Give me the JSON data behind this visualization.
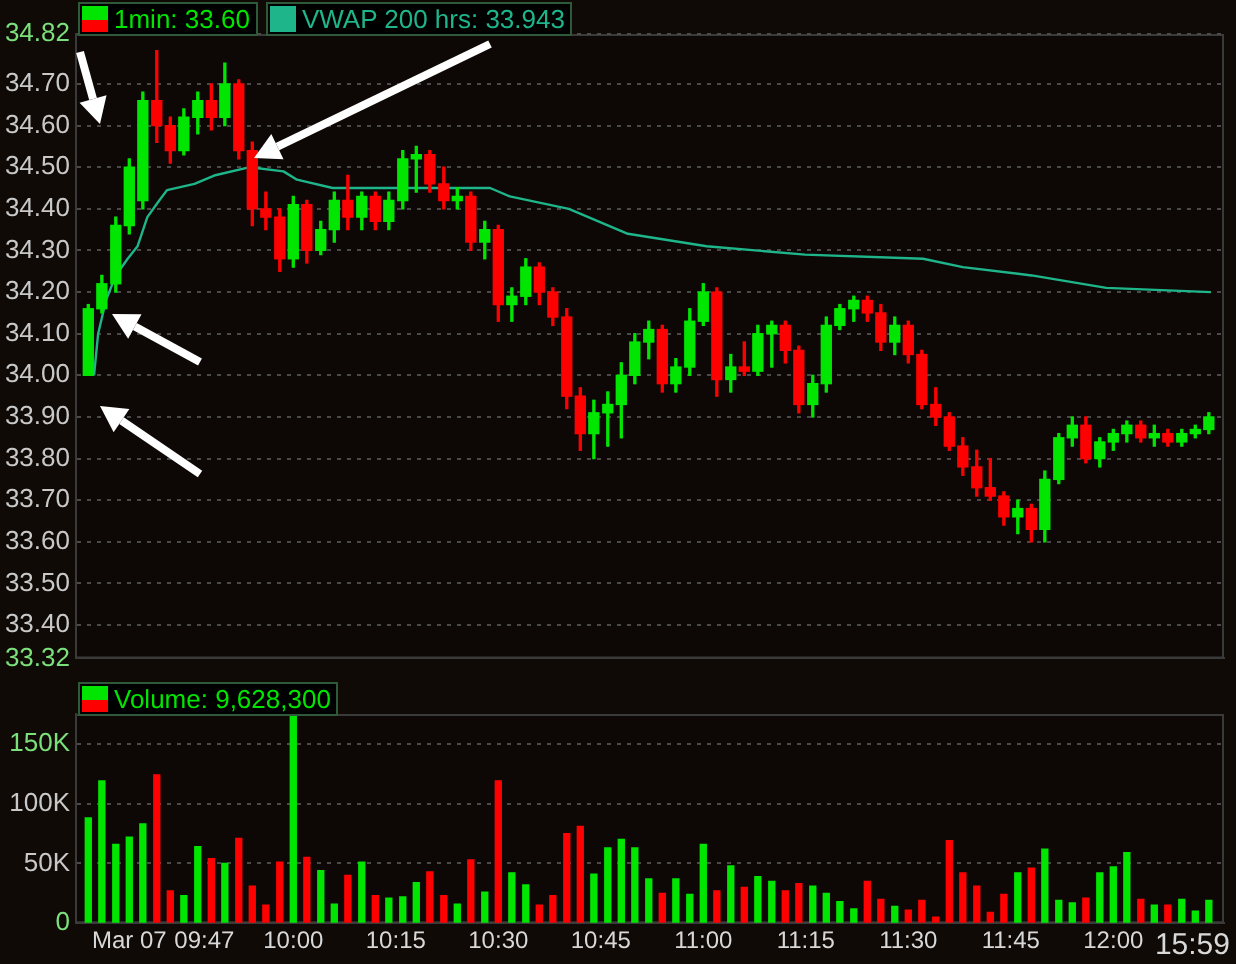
{
  "chart_data": [
    {
      "type": "candlestick",
      "xlim": [
        9.47,
        12.27
      ],
      "ylim": [
        33.32,
        34.82
      ],
      "yticks": [
        33.32,
        {
          "value": 33.4,
          "label": "33.40"
        },
        {
          "value": 33.5,
          "label": "33.50"
        },
        {
          "value": 33.6,
          "label": "33.60"
        },
        {
          "value": 33.7,
          "label": "33.70"
        },
        {
          "value": 33.8,
          "label": "33.80"
        },
        {
          "value": 33.9,
          "label": "33.90"
        },
        {
          "value": 34.0,
          "label": "34.00"
        },
        {
          "value": 34.1,
          "label": "34.10"
        },
        {
          "value": 34.2,
          "label": "34.20"
        },
        {
          "value": 34.3,
          "label": "34.30"
        },
        {
          "value": 34.4,
          "label": "34.40"
        },
        {
          "value": 34.5,
          "label": "34.50"
        },
        {
          "value": 34.6,
          "label": "34.60"
        },
        {
          "value": 34.7,
          "label": "34.70"
        },
        34.82
      ],
      "grid": "y",
      "legend": "top left",
      "tick_labels": "y",
      "series": [
        {
          "name": "1min: 33.60",
          "x": [
            9.5,
            9.533,
            9.567,
            9.6,
            9.633,
            9.667,
            9.7,
            9.733,
            9.767,
            9.8,
            9.833,
            9.867,
            9.9,
            9.933,
            9.967,
            10,
            10.033,
            10.067,
            10.1,
            10.133,
            10.167,
            10.2,
            10.233,
            10.267,
            10.3,
            10.333,
            10.367,
            10.4,
            10.433,
            10.467,
            10.5,
            10.533,
            10.567,
            10.6,
            10.633,
            10.667,
            10.7,
            10.733,
            10.767,
            10.8,
            10.833,
            10.867,
            10.9,
            10.933,
            10.967,
            11,
            11.033,
            11.067,
            11.1,
            11.133,
            11.167,
            11.2,
            11.233,
            11.267,
            11.3,
            11.333,
            11.367,
            11.4,
            11.433,
            11.467,
            11.5,
            11.533,
            11.567,
            11.6,
            11.633,
            11.667,
            11.7,
            11.733,
            11.767,
            11.8,
            11.833,
            11.867,
            11.9,
            11.933,
            11.967,
            12,
            12.033,
            12.067,
            12.1,
            12.133,
            12.167,
            12.2,
            12.233
          ],
          "ohlc": [
            [
              34.0,
              34.17,
              34.0,
              34.16
            ],
            [
              34.16,
              34.24,
              34.15,
              34.22
            ],
            [
              34.22,
              34.38,
              34.2,
              34.36
            ],
            [
              34.36,
              34.52,
              34.34,
              34.5
            ],
            [
              34.42,
              34.68,
              34.4,
              34.66
            ],
            [
              34.66,
              34.78,
              34.56,
              34.6
            ],
            [
              34.6,
              34.62,
              34.51,
              34.54
            ],
            [
              34.54,
              34.64,
              34.53,
              34.62
            ],
            [
              34.62,
              34.68,
              34.58,
              34.66
            ],
            [
              34.66,
              34.7,
              34.59,
              34.62
            ],
            [
              34.62,
              34.75,
              34.6,
              34.7
            ],
            [
              34.7,
              34.71,
              34.52,
              34.54
            ],
            [
              34.54,
              34.56,
              34.36,
              34.4
            ],
            [
              34.4,
              34.44,
              34.35,
              34.38
            ],
            [
              34.38,
              34.4,
              34.25,
              34.28
            ],
            [
              34.28,
              34.43,
              34.26,
              34.41
            ],
            [
              34.41,
              34.42,
              34.27,
              34.3
            ],
            [
              34.3,
              34.37,
              34.29,
              34.35
            ],
            [
              34.35,
              34.44,
              34.32,
              34.42
            ],
            [
              34.42,
              34.48,
              34.35,
              34.38
            ],
            [
              34.38,
              34.44,
              34.35,
              34.43
            ],
            [
              34.43,
              34.44,
              34.35,
              34.37
            ],
            [
              34.37,
              34.44,
              34.35,
              34.42
            ],
            [
              34.42,
              34.54,
              34.4,
              34.52
            ],
            [
              34.52,
              34.55,
              34.44,
              34.53
            ],
            [
              34.53,
              34.54,
              34.44,
              34.46
            ],
            [
              34.46,
              34.5,
              34.4,
              34.42
            ],
            [
              34.42,
              34.45,
              34.4,
              34.43
            ],
            [
              34.43,
              34.44,
              34.3,
              34.32
            ],
            [
              34.32,
              34.37,
              34.28,
              34.35
            ],
            [
              34.35,
              34.36,
              34.13,
              34.17
            ],
            [
              34.17,
              34.21,
              34.13,
              34.19
            ],
            [
              34.19,
              34.28,
              34.17,
              34.26
            ],
            [
              34.26,
              34.27,
              34.17,
              34.2
            ],
            [
              34.2,
              34.21,
              34.12,
              34.14
            ],
            [
              34.14,
              34.16,
              33.92,
              33.95
            ],
            [
              33.95,
              33.97,
              33.82,
              33.86
            ],
            [
              33.86,
              33.94,
              33.8,
              33.91
            ],
            [
              33.91,
              33.96,
              33.83,
              33.93
            ],
            [
              33.93,
              34.03,
              33.85,
              34.0
            ],
            [
              34.0,
              34.1,
              33.98,
              34.08
            ],
            [
              34.08,
              34.13,
              34.04,
              34.11
            ],
            [
              34.11,
              34.12,
              33.96,
              33.98
            ],
            [
              33.98,
              34.04,
              33.96,
              34.02
            ],
            [
              34.02,
              34.16,
              34.0,
              34.13
            ],
            [
              34.13,
              34.22,
              34.12,
              34.2
            ],
            [
              34.2,
              34.21,
              33.95,
              33.99
            ],
            [
              33.99,
              34.05,
              33.96,
              34.02
            ],
            [
              34.02,
              34.08,
              34.0,
              34.01
            ],
            [
              34.01,
              34.12,
              34.0,
              34.1
            ],
            [
              34.1,
              34.13,
              34.02,
              34.12
            ],
            [
              34.12,
              34.13,
              34.03,
              34.06
            ],
            [
              34.06,
              34.07,
              33.91,
              33.93
            ],
            [
              33.93,
              34.0,
              33.9,
              33.98
            ],
            [
              33.98,
              34.14,
              33.96,
              34.12
            ],
            [
              34.12,
              34.17,
              34.11,
              34.16
            ],
            [
              34.16,
              34.19,
              34.13,
              34.18
            ],
            [
              34.18,
              34.19,
              34.13,
              34.15
            ],
            [
              34.15,
              34.17,
              34.06,
              34.08
            ],
            [
              34.08,
              34.14,
              34.05,
              34.12
            ],
            [
              34.12,
              34.13,
              34.03,
              34.05
            ],
            [
              34.05,
              34.06,
              33.92,
              33.93
            ],
            [
              33.93,
              33.97,
              33.88,
              33.9
            ],
            [
              33.9,
              33.91,
              33.82,
              33.83
            ],
            [
              33.83,
              33.85,
              33.76,
              33.78
            ],
            [
              33.78,
              33.82,
              33.71,
              33.73
            ],
            [
              33.73,
              33.8,
              33.7,
              33.71
            ],
            [
              33.71,
              33.72,
              33.64,
              33.66
            ],
            [
              33.66,
              33.7,
              33.62,
              33.68
            ],
            [
              33.68,
              33.69,
              33.6,
              33.63
            ],
            [
              33.63,
              33.77,
              33.6,
              33.75
            ],
            [
              33.75,
              33.86,
              33.74,
              33.85
            ],
            [
              33.85,
              33.9,
              33.83,
              33.88
            ],
            [
              33.88,
              33.9,
              33.79,
              33.8
            ],
            [
              33.8,
              33.85,
              33.78,
              33.84
            ],
            [
              33.84,
              33.87,
              33.82,
              33.86
            ],
            [
              33.86,
              33.89,
              33.84,
              33.88
            ],
            [
              33.88,
              33.89,
              33.84,
              33.85
            ],
            [
              33.85,
              33.88,
              33.83,
              33.86
            ],
            [
              33.86,
              33.87,
              33.83,
              33.84
            ],
            [
              33.84,
              33.87,
              33.83,
              33.86
            ],
            [
              33.86,
              33.88,
              33.85,
              33.87
            ],
            [
              33.87,
              33.91,
              33.86,
              33.9
            ]
          ],
          "colors": [
            "#00e600",
            "#00e600",
            "#00e600",
            "#00e600",
            "#00e600",
            "#ff0000",
            "#ff0000",
            "#00e600",
            "#00e600",
            "#ff0000",
            "#00e600",
            "#ff0000",
            "#ff0000",
            "#ff0000",
            "#ff0000",
            "#00e600",
            "#ff0000",
            "#00e600",
            "#00e600",
            "#ff0000",
            "#00e600",
            "#ff0000",
            "#00e600",
            "#00e600",
            "#00e600",
            "#ff0000",
            "#ff0000",
            "#00e600",
            "#ff0000",
            "#00e600",
            "#ff0000",
            "#00e600",
            "#00e600",
            "#ff0000",
            "#ff0000",
            "#ff0000",
            "#ff0000",
            "#00e600",
            "#00e600",
            "#00e600",
            "#00e600",
            "#00e600",
            "#ff0000",
            "#00e600",
            "#00e600",
            "#00e600",
            "#ff0000",
            "#00e600",
            "#ff0000",
            "#00e600",
            "#00e600",
            "#ff0000",
            "#ff0000",
            "#00e600",
            "#00e600",
            "#00e600",
            "#00e600",
            "#ff0000",
            "#ff0000",
            "#00e600",
            "#ff0000",
            "#ff0000",
            "#ff0000",
            "#ff0000",
            "#ff0000",
            "#ff0000",
            "#ff0000",
            "#ff0000",
            "#00e600",
            "#ff0000",
            "#00e600",
            "#00e600",
            "#00e600",
            "#ff0000",
            "#00e600",
            "#00e600",
            "#00e600",
            "#ff0000",
            "#00e600",
            "#ff0000",
            "#00e600",
            "#00e600",
            "#00e600"
          ]
        },
        {
          "type": "line",
          "name": "VWAP 200 hrs: 33.943",
          "color": "#1fb58a",
          "x": [
            9.514,
            9.524,
            9.543,
            9.567,
            9.596,
            9.62,
            9.644,
            9.673,
            9.692,
            9.759,
            9.807,
            9.894,
            9.976,
            10.009,
            10.096,
            10.48,
            10.528,
            10.672,
            10.816,
            11.008,
            11.248,
            11.536,
            11.633,
            11.801,
            11.983,
            12.238
          ],
          "values": [
            34.0,
            34.1,
            34.18,
            34.24,
            34.28,
            34.31,
            34.38,
            34.42,
            34.445,
            34.46,
            34.48,
            34.5,
            34.49,
            34.47,
            34.45,
            34.45,
            34.43,
            34.4,
            34.34,
            34.31,
            34.29,
            34.28,
            34.26,
            34.24,
            34.21,
            34.2
          ]
        }
      ]
    },
    {
      "type": "bar",
      "xlim": [
        9.47,
        12.27
      ],
      "xticks": [
        {
          "value": 9.6,
          "label": "Mar 07"
        },
        {
          "value": 9.783,
          "label": "09:47"
        },
        {
          "value": 10,
          "label": "10:00"
        },
        {
          "value": 10.25,
          "label": "10:15"
        },
        {
          "value": 10.5,
          "label": "10:30"
        },
        {
          "value": 10.75,
          "label": "10:45"
        },
        {
          "value": 11,
          "label": "11:00"
        },
        {
          "value": 11.25,
          "label": "11:15"
        },
        {
          "value": 11.5,
          "label": "11:30"
        },
        {
          "value": 11.75,
          "label": "11:45"
        },
        {
          "value": 12,
          "label": "12:00"
        }
      ],
      "annotations": [
        "15:59"
      ],
      "ylim": [
        0,
        175000
      ],
      "yticks": [
        0,
        {
          "value": 50000,
          "label": "50K"
        },
        {
          "value": 100000,
          "label": "100K"
        },
        {
          "value": 150000,
          "label": "150K"
        }
      ],
      "grid": "y",
      "legend": "top left",
      "series": [
        {
          "name": "Volume: 9,628,300",
          "x": [
            9.5,
            9.533,
            9.567,
            9.6,
            9.633,
            9.667,
            9.7,
            9.733,
            9.767,
            9.8,
            9.833,
            9.867,
            9.9,
            9.933,
            9.967,
            10,
            10.033,
            10.067,
            10.1,
            10.133,
            10.167,
            10.2,
            10.233,
            10.267,
            10.3,
            10.333,
            10.367,
            10.4,
            10.433,
            10.467,
            10.5,
            10.533,
            10.567,
            10.6,
            10.633,
            10.667,
            10.7,
            10.733,
            10.767,
            10.8,
            10.833,
            10.867,
            10.9,
            10.933,
            10.967,
            11,
            11.033,
            11.067,
            11.1,
            11.133,
            11.167,
            11.2,
            11.233,
            11.267,
            11.3,
            11.333,
            11.367,
            11.4,
            11.433,
            11.467,
            11.5,
            11.533,
            11.567,
            11.6,
            11.633,
            11.667,
            11.7,
            11.733,
            11.767,
            11.8,
            11.833,
            11.867,
            11.9,
            11.933,
            11.967,
            12,
            12.033,
            12.067,
            12.1,
            12.133,
            12.167,
            12.2,
            12.233
          ],
          "values": [
            88000,
            119000,
            66000,
            72000,
            83000,
            124000,
            27000,
            23000,
            64000,
            54000,
            50000,
            71000,
            31000,
            15000,
            51000,
            173000,
            55000,
            44000,
            16000,
            40000,
            51000,
            23000,
            21000,
            22000,
            34000,
            43000,
            23000,
            16000,
            53000,
            26000,
            119000,
            42000,
            32000,
            15000,
            23000,
            75000,
            81000,
            41000,
            63000,
            70000,
            63000,
            37000,
            25000,
            37000,
            24000,
            66000,
            27000,
            48000,
            30000,
            39000,
            35000,
            27000,
            33000,
            31000,
            25000,
            18000,
            12000,
            35000,
            20000,
            14000,
            11000,
            19000,
            5000,
            69000,
            42000,
            31000,
            9000,
            24000,
            42000,
            46000,
            62000,
            19000,
            17000,
            21000,
            42000,
            47000,
            59000,
            20000,
            15000,
            15000,
            20000,
            10000,
            19000
          ],
          "colors": [
            "#00e600",
            "#00e600",
            "#00e600",
            "#00e600",
            "#00e600",
            "#ff0000",
            "#ff0000",
            "#00e600",
            "#00e600",
            "#ff0000",
            "#00e600",
            "#ff0000",
            "#ff0000",
            "#ff0000",
            "#ff0000",
            "#00e600",
            "#ff0000",
            "#00e600",
            "#00e600",
            "#ff0000",
            "#00e600",
            "#ff0000",
            "#00e600",
            "#00e600",
            "#00e600",
            "#ff0000",
            "#ff0000",
            "#00e600",
            "#ff0000",
            "#00e600",
            "#ff0000",
            "#00e600",
            "#00e600",
            "#ff0000",
            "#ff0000",
            "#ff0000",
            "#ff0000",
            "#00e600",
            "#00e600",
            "#00e600",
            "#00e600",
            "#00e600",
            "#ff0000",
            "#00e600",
            "#00e600",
            "#00e600",
            "#ff0000",
            "#00e600",
            "#ff0000",
            "#00e600",
            "#00e600",
            "#ff0000",
            "#ff0000",
            "#00e600",
            "#00e600",
            "#00e600",
            "#00e600",
            "#ff0000",
            "#ff0000",
            "#00e600",
            "#ff0000",
            "#ff0000",
            "#ff0000",
            "#ff0000",
            "#ff0000",
            "#ff0000",
            "#ff0000",
            "#ff0000",
            "#00e600",
            "#ff0000",
            "#00e600",
            "#00e600",
            "#00e600",
            "#ff0000",
            "#00e600",
            "#00e600",
            "#00e600",
            "#ff0000",
            "#00e600",
            "#ff0000",
            "#00e600",
            "#00e600",
            "#00e600"
          ]
        }
      ]
    }
  ]
}
